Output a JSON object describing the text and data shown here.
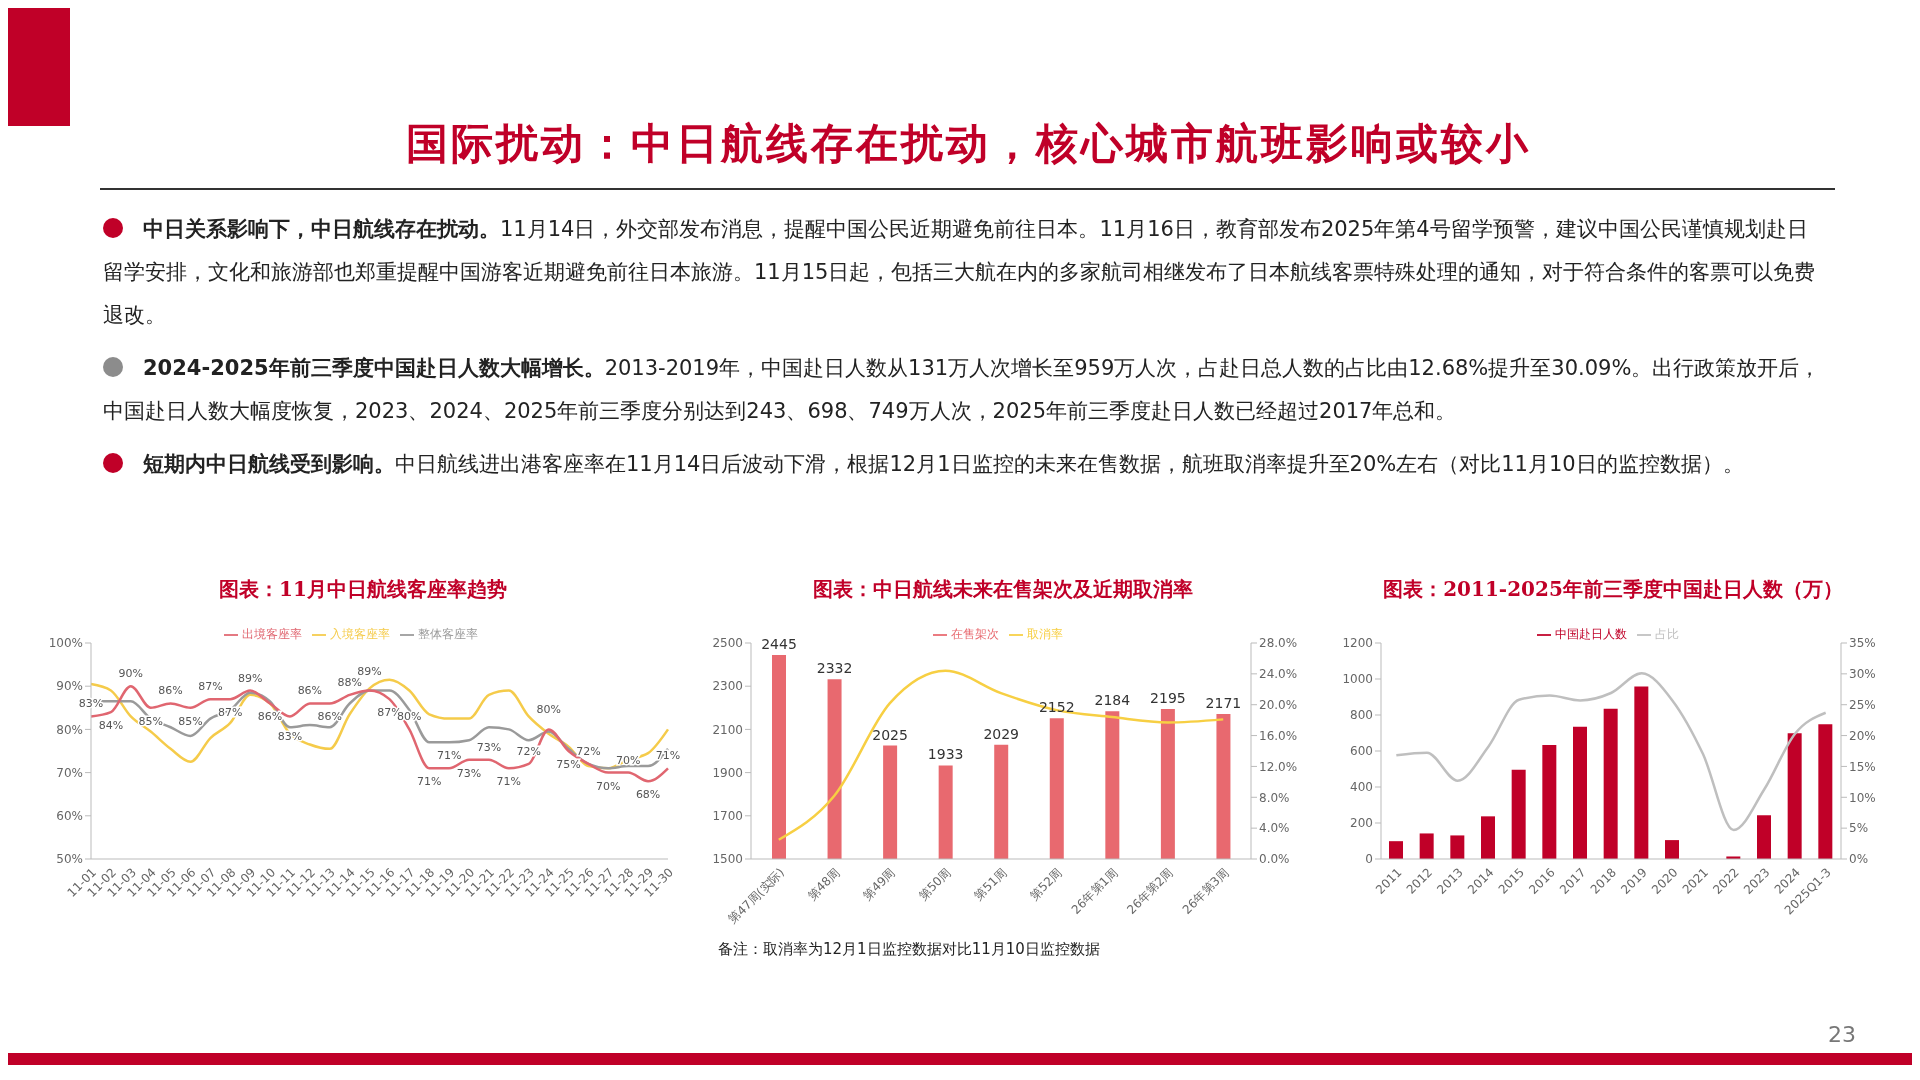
{
  "chart_data": [
    {
      "type": "other",
      "title": "国际扰动：中日航线存在扰动，核心城市航班影响或较小",
      "annotations": [
        "中日关系影响下，中日航线存在扰动。11月14日，外交部发布消息，提醒中国公民近期避免前往日本。11月16日，教育部发布2025年第4号留学预警，建议中国公民谨慎规划赴日留学安排，文化和旅游部也郑重提醒中国游客近期避免前往日本旅游。11月15日起，包括三大航在内的多家航司相继发布了日本航线客票特殊处理的通知，对于符合条件的客票可以免费退改。",
        "2024-2025年前三季度中国赴日人数大幅增长。2013-2019年，中国赴日人数从131万人次增长至959万人次，占赴日总人数的占比由12.68%提升至30.09%。出行政策放开后，中国赴日人数大幅度恢复，2023、2024、2025年前三季度分别达到243、698、749万人次，2025年前三季度赴日人数已经超过2017年总和。",
        "短期内中日航线受到影响。中日航线进出港客座率在11月14日后波动下滑，根据12月1日监控的未来在售数据，航班取消率提升至20%左右（对比11月10日的监控数据）。",
        "23"
      ]
    },
    {
      "type": "line",
      "title": "图表：11月中日航线客座率趋势",
      "legend": "top",
      "marker": "none",
      "categories": [
        "11-01",
        "11-02",
        "11-03",
        "11-04",
        "11-05",
        "11-06",
        "11-07",
        "11-08",
        "11-09",
        "11-10",
        "11-11",
        "11-12",
        "11-13",
        "11-14",
        "11-15",
        "11-16",
        "11-17",
        "11-18",
        "11-19",
        "11-20",
        "11-21",
        "11-22",
        "11-23",
        "11-24",
        "11-25",
        "11-26",
        "11-27",
        "11-28",
        "11-29",
        "11-30"
      ],
      "ylim": [
        50,
        100
      ],
      "yticks": [
        {
          "value": 50,
          "label": "50%"
        },
        {
          "value": 60,
          "label": "60%"
        },
        {
          "value": 70,
          "label": "70%"
        },
        {
          "value": 80,
          "label": "80%"
        },
        {
          "value": 90,
          "label": "90%"
        },
        {
          "value": 100,
          "label": "100%"
        }
      ],
      "series": [
        {
          "name": "出境客座率",
          "color": "#e06670",
          "values": [
            83,
            84,
            90,
            85,
            86,
            85,
            87,
            87,
            89,
            86,
            83,
            86,
            86,
            88,
            89,
            87,
            80,
            71,
            71,
            73,
            73,
            71,
            72,
            80,
            75,
            72,
            70,
            70,
            68,
            71
          ],
          "value_labels": [
            "83%",
            "84%",
            "90%",
            "85%",
            "86%",
            "85%",
            "87%",
            "87%",
            "89%",
            "86%",
            "83%",
            "86%",
            "86%",
            "88%",
            "89%",
            "87%",
            "80%",
            "71%",
            "71%",
            "73%",
            "73%",
            "71%",
            "72%",
            "80%",
            "75%",
            "72%",
            "70%",
            "70%",
            "68%",
            "71%"
          ]
        },
        {
          "name": "入境客座率",
          "color": "#f5cb4a",
          "values": [
            90.5,
            89,
            83,
            79.5,
            75.5,
            72.5,
            78,
            81.5,
            88,
            86,
            79,
            76.5,
            75.5,
            83.5,
            89.5,
            91.5,
            89,
            83.5,
            82.5,
            82.5,
            88,
            89,
            83,
            79,
            76,
            71.5,
            71,
            73,
            74.5,
            80
          ]
        },
        {
          "name": "整体客座率",
          "color": "#9a9a9a",
          "values": [
            86.5,
            86.5,
            86.5,
            82.5,
            80.5,
            78.5,
            82.5,
            84.5,
            88.5,
            86.5,
            80.5,
            81,
            80.5,
            86,
            89,
            89,
            84.5,
            77,
            77,
            77.5,
            80.5,
            80,
            77.5,
            79.5,
            75.5,
            72,
            71,
            71.5,
            71.5,
            75.5
          ]
        }
      ]
    },
    {
      "type": "bar",
      "title": "图表：中日航线未来在售架次及近期取消率",
      "legend": "top",
      "marker": "none",
      "categories": [
        "第47周(实际)",
        "第48周",
        "第49周",
        "第50周",
        "第51周",
        "第52周",
        "26年第1周",
        "26年第2周",
        "26年第3周"
      ],
      "ylim": [
        1500,
        2500
      ],
      "yticks": [
        1500,
        1700,
        1900,
        2100,
        2300,
        2500
      ],
      "y2lim": [
        0,
        28
      ],
      "y2ticks": [
        {
          "value": 0,
          "label": "0.0%"
        },
        {
          "value": 4,
          "label": "4.0%"
        },
        {
          "value": 8,
          "label": "8.0%"
        },
        {
          "value": 12,
          "label": "12.0%"
        },
        {
          "value": 16,
          "label": "16.0%"
        },
        {
          "value": 20,
          "label": "20.0%"
        },
        {
          "value": 24,
          "label": "24.0%"
        },
        {
          "value": 28,
          "label": "28.0%"
        }
      ],
      "series": [
        {
          "name": "在售架次",
          "type": "bar",
          "color": "#e8696f",
          "values": [
            2445,
            2332,
            2025,
            1933,
            2029,
            2152,
            2184,
            2195,
            2171
          ],
          "value_labels": [
            "2445",
            "2332",
            "2025",
            "1933",
            "2029",
            "2152",
            "2184",
            "2195",
            "2171"
          ]
        },
        {
          "name": "取消率",
          "type": "line",
          "axis": "y2",
          "color": "#f7cf43",
          "values": [
            2.5,
            8.2,
            20.2,
            24.4,
            21.5,
            19.3,
            18.4,
            17.7,
            18.1
          ]
        }
      ],
      "annotations": [
        "备注：取消率为12月1日监控数据对比11月10日监控数据"
      ]
    },
    {
      "type": "bar",
      "title": "图表：2011-2025年前三季度中国赴日人数（万）",
      "legend": "top",
      "marker": "none",
      "categories": [
        "2011",
        "2012",
        "2013",
        "2014",
        "2015",
        "2016",
        "2017",
        "2018",
        "2019",
        "2020",
        "2021",
        "2022",
        "2023",
        "2024",
        "2025Q1-3"
      ],
      "ylim": [
        0,
        1200
      ],
      "yticks": [
        0,
        200,
        400,
        600,
        800,
        1000,
        1200
      ],
      "y2lim": [
        0,
        35
      ],
      "y2ticks": [
        {
          "value": 0,
          "label": "0%"
        },
        {
          "value": 5,
          "label": "5%"
        },
        {
          "value": 10,
          "label": "10%"
        },
        {
          "value": 15,
          "label": "15%"
        },
        {
          "value": 20,
          "label": "20%"
        },
        {
          "value": 25,
          "label": "25%"
        },
        {
          "value": 30,
          "label": "30%"
        },
        {
          "value": 35,
          "label": "35%"
        }
      ],
      "series": [
        {
          "name": "中国赴日人数",
          "type": "bar",
          "color": "#c00028",
          "values": [
            99,
            142,
            131,
            237,
            496,
            634,
            735,
            835,
            959,
            105,
            0,
            14,
            243,
            698,
            749
          ]
        },
        {
          "name": "占比",
          "type": "line",
          "axis": "y2",
          "color": "#bfbfbf",
          "values": [
            16.8,
            17.2,
            12.68,
            18.2,
            25.8,
            26.5,
            25.7,
            26.9,
            30.09,
            25.7,
            17,
            4.7,
            11.3,
            20.3,
            23.7
          ]
        }
      ]
    }
  ]
}
